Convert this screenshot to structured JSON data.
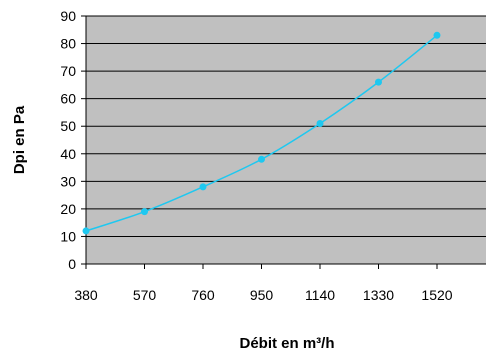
{
  "chart_data": {
    "type": "line",
    "title": "",
    "xlabel": "Débit en m³/h",
    "ylabel": "Dpi en Pa",
    "x": [
      380,
      570,
      760,
      950,
      1140,
      1330,
      1520
    ],
    "x_tick_labels": [
      "380",
      "570",
      "760",
      "950",
      "1140",
      "1330",
      "1520"
    ],
    "y_ticks": [
      0,
      10,
      20,
      30,
      40,
      50,
      60,
      70,
      80,
      90
    ],
    "y_tick_labels": [
      "0",
      "10",
      "20",
      "30",
      "40",
      "50",
      "60",
      "70",
      "80",
      "90"
    ],
    "ylim": [
      0,
      90
    ],
    "series": [
      {
        "values": [
          12,
          19,
          28,
          38,
          51,
          66,
          83
        ],
        "color": "#1ec8f0",
        "marker": "circle"
      }
    ],
    "grid": true,
    "plot_background": "#c0c0c0",
    "legend": "none"
  }
}
